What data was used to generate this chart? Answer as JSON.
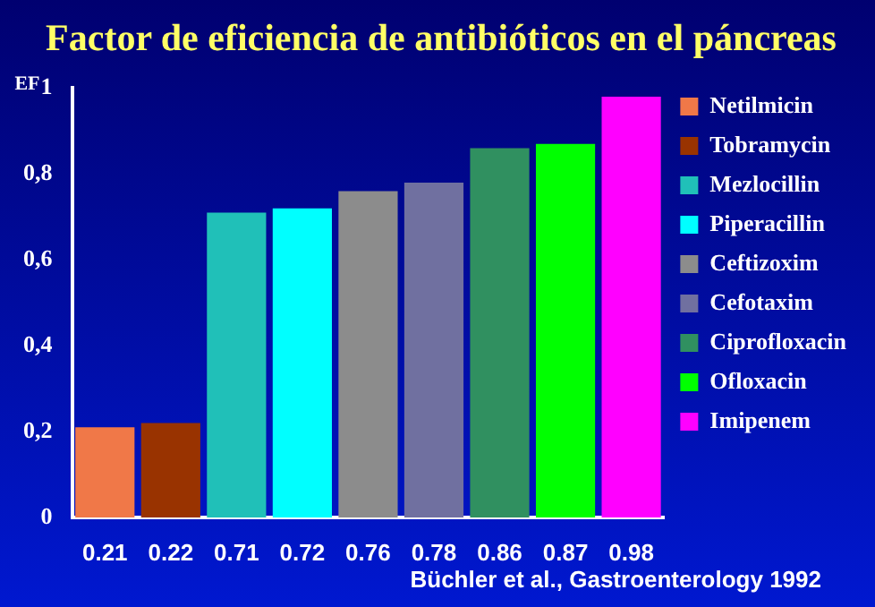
{
  "chart_data": {
    "type": "bar",
    "title": "Factor de eficiencia de antibióticos en el páncreas",
    "ylabel": "EF",
    "categories": [
      null,
      null,
      null,
      null,
      null,
      null,
      null,
      null,
      null
    ],
    "series": [
      {
        "name": "Netilmicin",
        "color": "#f07848",
        "values": [
          0.21,
          null,
          null,
          null,
          null,
          null,
          null,
          null,
          null
        ]
      },
      {
        "name": "Tobramycin",
        "color": "#993300",
        "values": [
          null,
          0.22,
          null,
          null,
          null,
          null,
          null,
          null,
          null
        ]
      },
      {
        "name": "Mezlocillin",
        "color": "#20c0b8",
        "values": [
          null,
          null,
          0.71,
          null,
          null,
          null,
          null,
          null,
          null
        ]
      },
      {
        "name": "Piperacillin",
        "color": "#00ffff",
        "values": [
          null,
          null,
          null,
          0.72,
          null,
          null,
          null,
          null,
          null
        ]
      },
      {
        "name": "Ceftizoxim",
        "color": "#8c8c8c",
        "values": [
          null,
          null,
          null,
          null,
          0.76,
          null,
          null,
          null,
          null
        ]
      },
      {
        "name": "Cefotaxim",
        "color": "#7070a0",
        "values": [
          null,
          null,
          null,
          null,
          null,
          0.78,
          null,
          null,
          null
        ]
      },
      {
        "name": "Ciprofloxacin",
        "color": "#309060",
        "values": [
          null,
          null,
          null,
          null,
          null,
          null,
          0.86,
          null,
          null
        ]
      },
      {
        "name": "Ofloxacin",
        "color": "#00ff00",
        "values": [
          null,
          null,
          null,
          null,
          null,
          null,
          null,
          0.87,
          null
        ]
      },
      {
        "name": "Imipenem",
        "color": "#ff00ff",
        "values": [
          null,
          null,
          null,
          null,
          null,
          null,
          null,
          null,
          0.98
        ]
      }
    ],
    "data_labels": true,
    "ylim": [
      0,
      1
    ],
    "yticks": [
      0,
      {
        "value": 0.2,
        "label": "0,2"
      },
      {
        "value": 0.4,
        "label": "0,4"
      },
      {
        "value": 0.6,
        "label": "0,6"
      },
      {
        "value": 0.8,
        "label": "0,8"
      },
      1
    ],
    "tick_labels": "y",
    "legend": "right",
    "annotations": [
      "Büchler et al., Gastroenterology 1992"
    ]
  }
}
